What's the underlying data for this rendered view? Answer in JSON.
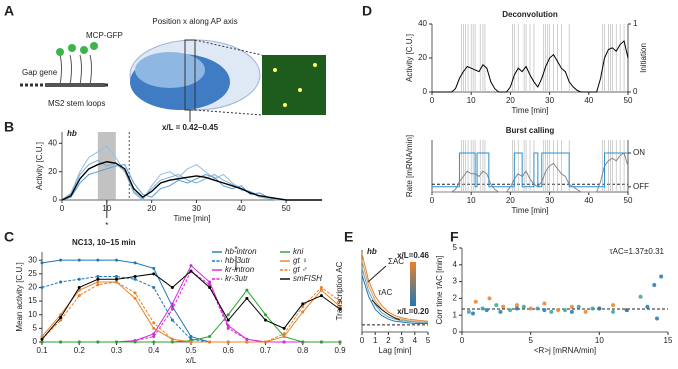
{
  "panels": [
    "A",
    "B",
    "C",
    "D",
    "E",
    "F"
  ],
  "diagram": {
    "mcp": "MCP-GFP",
    "gene": "Gap gene",
    "loops": "MS2 stem loops",
    "position": "Position x along AP axis",
    "range": "x/L = 0.42–0.45"
  },
  "chart_data": [
    {
      "type": "line",
      "label": "hb",
      "ylabel": "Activity [C.U.]",
      "xlabel": "Time [min]",
      "annotation": "*",
      "x": [
        0,
        2,
        4,
        6,
        8,
        10,
        12,
        14,
        16,
        18,
        20,
        22,
        24,
        26,
        28,
        30,
        32,
        34,
        36,
        38,
        40,
        42,
        44,
        46,
        48,
        50,
        52,
        54,
        56,
        58
      ],
      "xlim": [
        0,
        58
      ],
      "xticks": [
        0,
        10,
        20,
        30,
        40,
        50
      ],
      "ylim": [
        0,
        48
      ],
      "yticks": [
        0,
        20,
        40
      ],
      "shade": [
        8,
        12
      ],
      "vline": 15,
      "series": [
        {
          "color": "#8fbfe0",
          "values": [
            0,
            5,
            20,
            30,
            34,
            38,
            30,
            20,
            5,
            0,
            10,
            18,
            20,
            16,
            22,
            25,
            20,
            15,
            18,
            12,
            8,
            6,
            2,
            1,
            0,
            0,
            0,
            0,
            0,
            0
          ]
        },
        {
          "color": "#5b9bd5",
          "values": [
            0,
            2,
            12,
            18,
            20,
            22,
            24,
            25,
            12,
            4,
            2,
            8,
            10,
            14,
            12,
            15,
            18,
            16,
            10,
            8,
            10,
            4,
            5,
            2,
            1,
            0,
            0,
            0,
            0,
            0
          ]
        },
        {
          "color": "#7aaed6",
          "values": [
            0,
            4,
            18,
            25,
            28,
            24,
            26,
            20,
            6,
            1,
            8,
            14,
            16,
            18,
            14,
            12,
            15,
            18,
            14,
            11,
            7,
            6,
            3,
            2,
            0,
            0,
            0,
            0,
            0,
            0
          ]
        },
        {
          "color": "#000000",
          "values": [
            0,
            3,
            15,
            22,
            25,
            27,
            26,
            22,
            8,
            2,
            6,
            12,
            14,
            15,
            16,
            17,
            16,
            14,
            12,
            10,
            8,
            5,
            3,
            2,
            1,
            0,
            0,
            0,
            0,
            0
          ]
        }
      ]
    },
    {
      "type": "line",
      "title": "NC13, 10–15 min",
      "ylabel": "Mean activity [C.U.]",
      "xlabel": "x/L",
      "annotation": "*",
      "x": [
        0.1,
        0.15,
        0.2,
        0.25,
        0.3,
        0.35,
        0.4,
        0.45,
        0.5,
        0.55,
        0.6,
        0.65,
        0.7,
        0.75,
        0.8,
        0.85,
        0.9
      ],
      "xlim": [
        0.1,
        0.9
      ],
      "xticks": [
        0.1,
        0.2,
        0.3,
        0.4,
        0.5,
        0.6,
        0.7,
        0.8,
        0.9
      ],
      "ylim": [
        0,
        33
      ],
      "yticks": [
        0,
        5,
        10,
        15,
        20,
        25,
        30
      ],
      "series": [
        {
          "name": "hb-intron",
          "color": "#1f78b4",
          "values": [
            29,
            30,
            30,
            30,
            30,
            29,
            27,
            13,
            2,
            0,
            0,
            0,
            0,
            0,
            0,
            0,
            0
          ]
        },
        {
          "name": "hb-3utr",
          "color": "#1f78b4",
          "dashed": true,
          "values": [
            20,
            22,
            23,
            24,
            24,
            23,
            20,
            8,
            1,
            0,
            0,
            0,
            0,
            0,
            0,
            0,
            0
          ]
        },
        {
          "name": "kr-intron",
          "color": "#d62ad6",
          "values": [
            0,
            0,
            0,
            0,
            0,
            0.5,
            3,
            14,
            28,
            22,
            6,
            1,
            0,
            0,
            0,
            0,
            0
          ]
        },
        {
          "name": "kr-3utr",
          "color": "#d62ad6",
          "dashed": true,
          "values": [
            0,
            0,
            0,
            0,
            0,
            0.5,
            2,
            12,
            26,
            21,
            5,
            1,
            0,
            0,
            0,
            0,
            0
          ]
        },
        {
          "name": "kni",
          "color": "#2ca02c",
          "values": [
            0,
            0,
            0,
            0,
            0,
            0,
            0,
            0,
            0.5,
            2,
            10,
            19,
            10,
            2,
            0,
            0,
            0
          ]
        },
        {
          "name": "gt ♀",
          "color": "#e8822a",
          "values": [
            2,
            10,
            19,
            22,
            22,
            16,
            5,
            1,
            0,
            0,
            0,
            0,
            0,
            2,
            11,
            19,
            13
          ]
        },
        {
          "name": "gt ♂",
          "color": "#e8822a",
          "dashed": true,
          "values": [
            1,
            8,
            17,
            21,
            22,
            18,
            7,
            1,
            0,
            0,
            0,
            0,
            0,
            3,
            13,
            20,
            15
          ]
        },
        {
          "name": "smFISH",
          "color": "#000000",
          "values": [
            1,
            9,
            20,
            23,
            23,
            24,
            25,
            20,
            26,
            20,
            8,
            16,
            8,
            5,
            14,
            17,
            12
          ]
        }
      ]
    },
    {
      "type": "line",
      "title": "Deconvolution",
      "ylabel": "Activity [C.U.]",
      "y2label": "Initiation",
      "xlabel": "Time [min]",
      "x": [
        0,
        1,
        2,
        3,
        4,
        5,
        6,
        7,
        8,
        9,
        10,
        11,
        12,
        13,
        14,
        15,
        16,
        17,
        18,
        19,
        20,
        21,
        22,
        23,
        24,
        25,
        26,
        27,
        28,
        29,
        30,
        31,
        32,
        33,
        34,
        35,
        36,
        37,
        38,
        39,
        40,
        41,
        42,
        43,
        44,
        45,
        46,
        47,
        48,
        49,
        50
      ],
      "xlim": [
        0,
        50
      ],
      "xticks": [
        0,
        10,
        20,
        30,
        40,
        50
      ],
      "ylim": [
        0,
        40
      ],
      "yticks": [
        0,
        20,
        40
      ],
      "y2lim": [
        0,
        1
      ],
      "y2ticks": [
        0,
        1
      ],
      "events": [
        7.5,
        8,
        8.5,
        9.2,
        10,
        10.5,
        11,
        12.3,
        13,
        13.5,
        20.5,
        21,
        22,
        23.5,
        24,
        25,
        26,
        28.5,
        29,
        29.5,
        30,
        31,
        32,
        33,
        35,
        43.5,
        44,
        45,
        45.5,
        46,
        47,
        48,
        49
      ],
      "series": [
        {
          "color": "#000000",
          "values": [
            0,
            0,
            0,
            0,
            0,
            0,
            2,
            8,
            12,
            15,
            14,
            13,
            12,
            16,
            14,
            6,
            2,
            0,
            0,
            0,
            3,
            10,
            14,
            12,
            15,
            10,
            6,
            3,
            8,
            15,
            20,
            22,
            18,
            14,
            12,
            6,
            3,
            1,
            0,
            0,
            0,
            0,
            0,
            8,
            20,
            25,
            26,
            24,
            28,
            30,
            20
          ]
        }
      ]
    },
    {
      "type": "line",
      "title": "Burst calling",
      "ylabel": "Rate [mRNA/min]",
      "xlabel": "Time [min]",
      "x": [
        0,
        1,
        2,
        3,
        4,
        5,
        6,
        7,
        8,
        9,
        10,
        11,
        12,
        13,
        14,
        15,
        16,
        17,
        18,
        19,
        20,
        21,
        22,
        23,
        24,
        25,
        26,
        27,
        28,
        29,
        30,
        31,
        32,
        33,
        34,
        35,
        36,
        37,
        38,
        39,
        40,
        41,
        42,
        43,
        44,
        45,
        46,
        47,
        48,
        49,
        50
      ],
      "xlim": [
        0,
        50
      ],
      "xticks": [
        0,
        10,
        20,
        30,
        40,
        50
      ],
      "ylim": [
        0,
        20
      ],
      "y2lim": [
        0,
        20
      ],
      "y2ticks": [
        {
          "value": 15,
          "label": "ON"
        },
        {
          "value": 2,
          "label": "OFF"
        }
      ],
      "threshold": 3,
      "events": [
        7.5,
        8,
        8.5,
        9.2,
        10,
        10.5,
        11,
        12.3,
        13,
        13.5,
        20.5,
        21,
        22,
        23.5,
        24,
        25,
        26,
        28.5,
        29,
        29.5,
        30,
        31,
        32,
        33,
        35,
        43.5,
        44,
        45,
        45.5,
        46,
        47,
        48,
        49
      ],
      "series": [
        {
          "color": "#888888",
          "values": [
            0,
            0,
            0,
            0,
            0,
            0,
            1,
            4,
            6,
            8,
            7,
            7,
            6,
            8,
            7,
            3,
            1,
            0,
            0,
            0,
            2,
            5,
            7,
            6,
            8,
            5,
            3,
            2,
            4,
            8,
            10,
            11,
            9,
            7,
            6,
            3,
            2,
            1,
            0,
            0,
            0,
            0,
            0,
            4,
            10,
            12,
            13,
            12,
            14,
            15,
            10
          ]
        },
        {
          "color": "#2a8fd0",
          "axis": "y2",
          "x": [
            0,
            7,
            7,
            11,
            11,
            11.5,
            11.5,
            14.5,
            14.5,
            21,
            21,
            23,
            23,
            26,
            26,
            27,
            27,
            28,
            28,
            35,
            35,
            44,
            44,
            50
          ],
          "values": [
            2,
            2,
            15,
            15,
            2,
            2,
            15,
            15,
            2,
            2,
            15,
            15,
            2,
            2,
            15,
            15,
            2,
            2,
            15,
            15,
            2,
            2,
            15,
            15
          ]
        }
      ]
    },
    {
      "type": "line",
      "label": "hb",
      "ylabel": "Transcription AC",
      "xlabel": "Lag [min]",
      "x": [
        0,
        0.5,
        1,
        1.5,
        2,
        2.5,
        3,
        3.5,
        4,
        4.5,
        5
      ],
      "xlim": [
        0,
        5
      ],
      "xticks": [
        0,
        1,
        2,
        3,
        4,
        5
      ],
      "ylim": [
        -0.1,
        1.05
      ],
      "hline": 0,
      "colorbar_labels": [
        "x/L=0.46",
        "x/L=0.20"
      ],
      "annotations": [
        "ΣAC",
        "τAC"
      ],
      "series": [
        {
          "color": "#e8822a",
          "values": [
            1,
            0.62,
            0.4,
            0.27,
            0.18,
            0.13,
            0.1,
            0.08,
            0.07,
            0.06,
            0.05
          ]
        },
        {
          "color": "#c9a06a",
          "values": [
            0.9,
            0.55,
            0.34,
            0.22,
            0.15,
            0.1,
            0.08,
            0.06,
            0.05,
            0.05,
            0.04
          ]
        },
        {
          "color": "#6fa0b8",
          "values": [
            0.8,
            0.47,
            0.28,
            0.17,
            0.11,
            0.08,
            0.06,
            0.05,
            0.04,
            0.03,
            0.03
          ]
        },
        {
          "color": "#1f78b4",
          "values": [
            0.7,
            0.4,
            0.22,
            0.13,
            0.08,
            0.05,
            0.04,
            0.03,
            0.02,
            0.02,
            0.02
          ]
        }
      ]
    },
    {
      "type": "scatter",
      "ylabel": "Corr time τAC [min]",
      "xlabel": "<R>j [mRNA/min]",
      "annotation": "τAC=1.37±0.31",
      "xlim": [
        0,
        15
      ],
      "xticks": [
        0,
        5,
        10,
        15
      ],
      "ylim": [
        0,
        5
      ],
      "yticks": [
        0,
        1,
        2,
        3,
        4,
        5
      ],
      "hline": 1.37,
      "series": [
        {
          "color": "#e8822a",
          "x": [
            1,
            2,
            3,
            4,
            5,
            6,
            7,
            8,
            9,
            10,
            11,
            12
          ],
          "values": [
            1.8,
            2.0,
            1.5,
            1.6,
            1.4,
            1.7,
            1.3,
            1.5,
            1.2,
            1.4,
            1.6,
            1.3
          ]
        },
        {
          "color": "#3aa39a",
          "x": [
            0.5,
            1.5,
            2.5,
            3.5,
            4.5,
            5.5,
            6.5,
            7.5,
            8.5,
            9.5,
            11,
            13
          ],
          "values": [
            1.2,
            1.4,
            1.6,
            1.3,
            1.5,
            1.4,
            1.2,
            1.3,
            1.5,
            1.4,
            1.2,
            2.1
          ]
        },
        {
          "color": "#1f78b4",
          "x": [
            0.8,
            1.8,
            2.8,
            4,
            6,
            8,
            10,
            12,
            13.5,
            14,
            14.2,
            14.5
          ],
          "values": [
            1.1,
            1.3,
            1.2,
            1.4,
            1.3,
            1.2,
            1.4,
            1.3,
            1.5,
            2.8,
            0.8,
            3.3
          ]
        }
      ]
    }
  ]
}
